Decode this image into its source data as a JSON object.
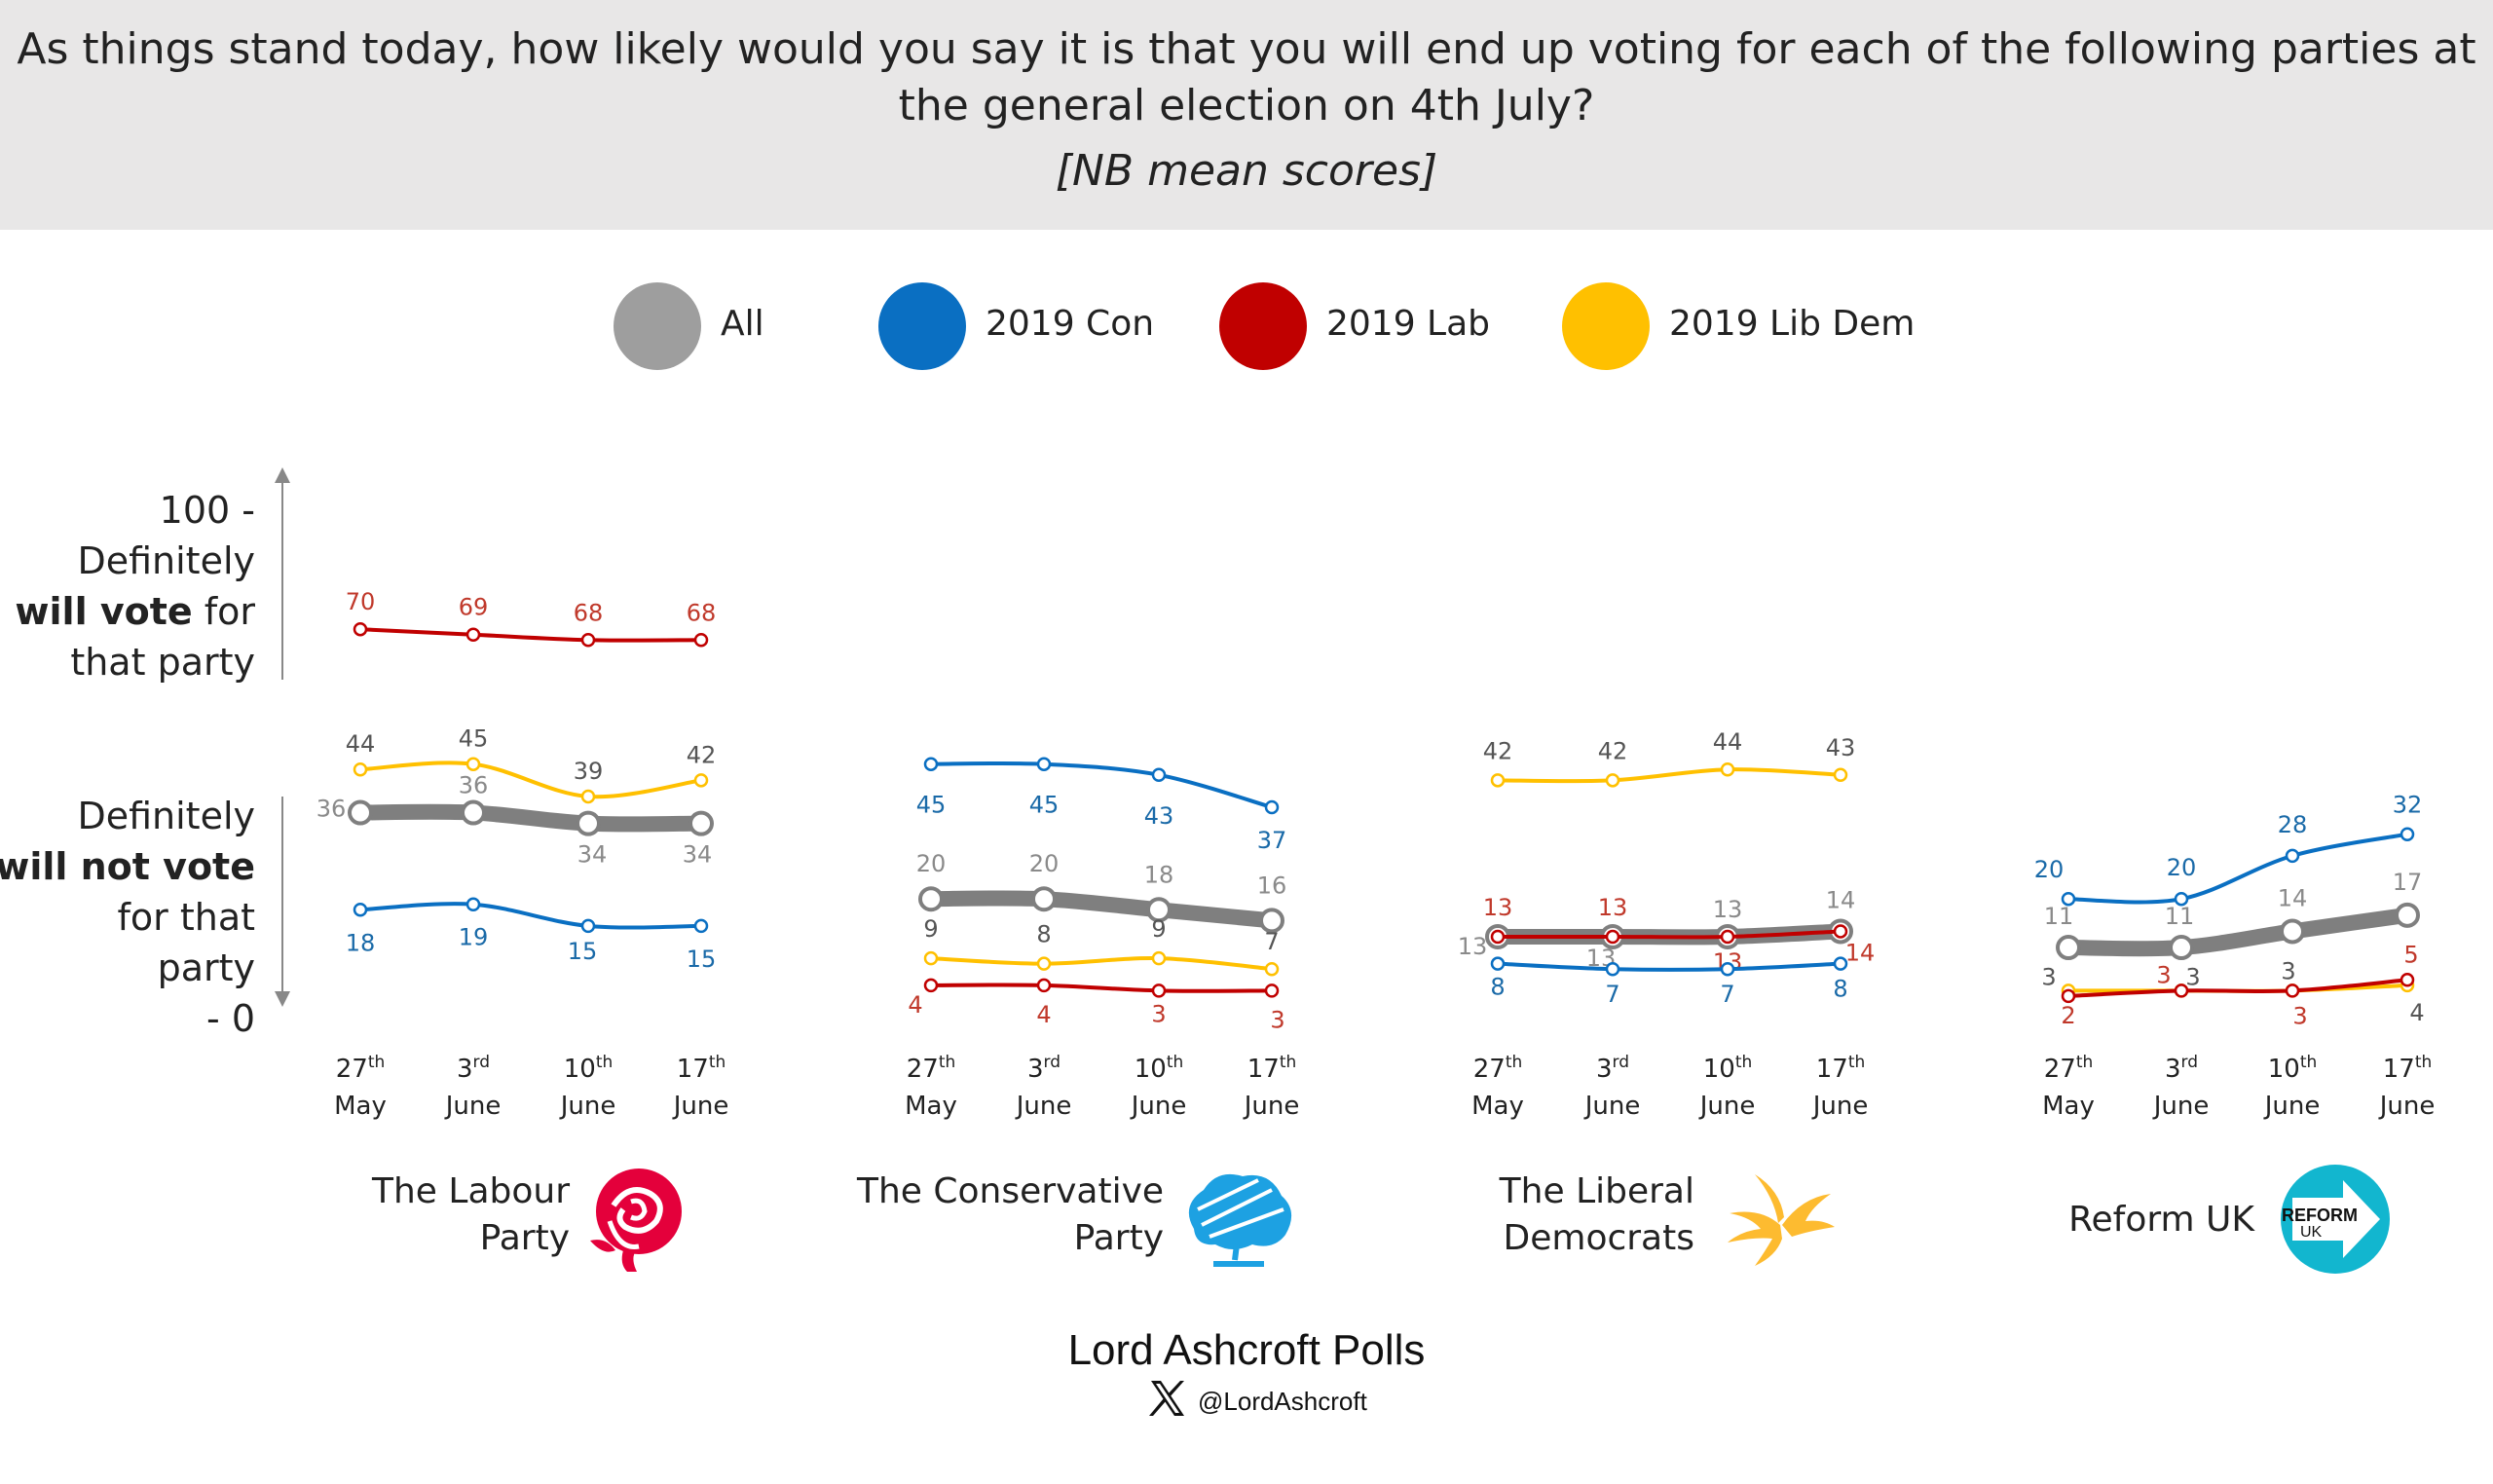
{
  "header": {
    "question": "As things stand today, how likely would you say it is that you will end up voting for each of the following parties at the general election on 4th July?",
    "note": "[NB mean scores]"
  },
  "legend": [
    {
      "label": "All",
      "color": "#9e9e9e"
    },
    {
      "label": "2019 Con",
      "color": "#0a6fc2"
    },
    {
      "label": "2019 Lab",
      "color": "#c00000"
    },
    {
      "label": "2019 Lib Dem",
      "color": "#ffc000"
    }
  ],
  "y_axis": {
    "top_value": "100 -",
    "top_line1": "Definitely",
    "top_bold": "will vote",
    "top_after_bold": " for",
    "top_line3": "that party",
    "bottom_line1": "Definitely",
    "bottom_bold": "will not vote",
    "bottom_line3": "for that",
    "bottom_line4": "party",
    "bottom_value": "- 0"
  },
  "chart_data": [
    {
      "type": "line",
      "party": "The Labour Party",
      "x": [
        "27th May",
        "3rd June",
        "10th June",
        "17th June"
      ],
      "ylim": [
        0,
        100
      ],
      "series": [
        {
          "name": "2019 Lab",
          "values": [
            70,
            69,
            68,
            68
          ]
        },
        {
          "name": "2019 Lib Dem",
          "values": [
            44,
            45,
            39,
            42
          ]
        },
        {
          "name": "All",
          "values": [
            36,
            36,
            34,
            34
          ]
        },
        {
          "name": "2019 Con",
          "values": [
            18,
            19,
            15,
            15
          ]
        }
      ]
    },
    {
      "type": "line",
      "party": "The Conservative Party",
      "x": [
        "27th May",
        "3rd June",
        "10th June",
        "17th June"
      ],
      "ylim": [
        0,
        100
      ],
      "series": [
        {
          "name": "2019 Con",
          "values": [
            45,
            45,
            43,
            37
          ]
        },
        {
          "name": "All",
          "values": [
            20,
            20,
            18,
            16
          ]
        },
        {
          "name": "2019 Lib Dem",
          "values": [
            9,
            8,
            9,
            7
          ]
        },
        {
          "name": "2019 Lab",
          "values": [
            4,
            4,
            3,
            3
          ]
        }
      ]
    },
    {
      "type": "line",
      "party": "The Liberal Democrats",
      "x": [
        "27th May",
        "3rd June",
        "10th June",
        "17th June"
      ],
      "ylim": [
        0,
        100
      ],
      "series": [
        {
          "name": "2019 Lib Dem",
          "values": [
            42,
            42,
            44,
            43
          ]
        },
        {
          "name": "All",
          "values": [
            13,
            13,
            13,
            14
          ]
        },
        {
          "name": "2019 Lab",
          "values": [
            13,
            13,
            13,
            14
          ]
        },
        {
          "name": "2019 Con",
          "values": [
            8,
            7,
            7,
            8
          ]
        }
      ]
    },
    {
      "type": "line",
      "party": "Reform UK",
      "x": [
        "27th May",
        "3rd June",
        "10th June",
        "17th June"
      ],
      "ylim": [
        0,
        100
      ],
      "series": [
        {
          "name": "2019 Con",
          "values": [
            20,
            20,
            28,
            32
          ]
        },
        {
          "name": "All",
          "values": [
            11,
            11,
            14,
            17
          ]
        },
        {
          "name": "2019 Lib Dem",
          "values": [
            3,
            3,
            3,
            4
          ]
        },
        {
          "name": "2019 Lab",
          "values": [
            2,
            3,
            3,
            5
          ]
        }
      ]
    }
  ],
  "x_labels": [
    {
      "num": "27",
      "sup": "th",
      "month": "May"
    },
    {
      "num": "3",
      "sup": "rd",
      "month": "June"
    },
    {
      "num": "10",
      "sup": "th",
      "month": "June"
    },
    {
      "num": "17",
      "sup": "th",
      "month": "June"
    }
  ],
  "party_labels": {
    "labour_line1": "The Labour",
    "labour_line2": "Party",
    "conservative_line1": "The Conservative",
    "conservative_line2": "Party",
    "libdem_line1": "The Liberal",
    "libdem_line2": "Democrats",
    "reform": "Reform UK",
    "reform_logo_line1": "REFORM",
    "reform_logo_line2": "UK"
  },
  "footer": {
    "title": "Lord Ashcroft Polls",
    "handle": "@LordAshcroft"
  }
}
